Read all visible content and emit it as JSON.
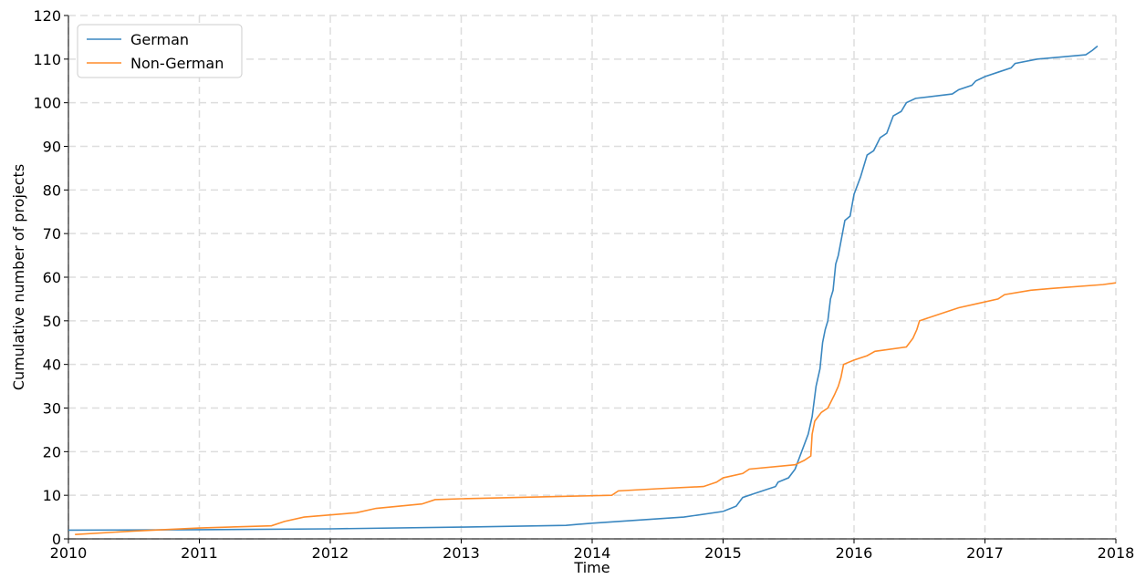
{
  "chart_data": {
    "type": "line",
    "xlabel": "Time",
    "ylabel": "Cumulative number of projects",
    "xlim": [
      2010,
      2018
    ],
    "xticks": [
      2010,
      2011,
      2012,
      2013,
      2014,
      2015,
      2016,
      2017,
      2018
    ],
    "ylim": [
      0,
      120
    ],
    "yticks": [
      0,
      10,
      20,
      30,
      40,
      50,
      60,
      70,
      80,
      90,
      100,
      110,
      120
    ],
    "grid": true,
    "legend": "upper left",
    "series": [
      {
        "name": "German",
        "color": "#3a87c0",
        "x": [
          2010.0,
          2011.0,
          2012.0,
          2013.0,
          2013.8,
          2014.0,
          2014.7,
          2015.0,
          2015.1,
          2015.15,
          2015.25,
          2015.4,
          2015.42,
          2015.5,
          2015.55,
          2015.6,
          2015.65,
          2015.68,
          2015.71,
          2015.74,
          2015.76,
          2015.78,
          2015.8,
          2015.82,
          2015.84,
          2015.86,
          2015.88,
          2015.93,
          2015.97,
          2016.0,
          2016.05,
          2016.1,
          2016.15,
          2016.2,
          2016.25,
          2016.3,
          2016.36,
          2016.4,
          2016.47,
          2016.75,
          2016.8,
          2016.9,
          2016.93,
          2017.0,
          2017.1,
          2017.2,
          2017.23,
          2017.4,
          2017.77,
          2017.82,
          2017.86
        ],
        "values": [
          2,
          2.1,
          2.3,
          2.7,
          3.1,
          3.6,
          5,
          6.3,
          7.5,
          9.5,
          10.5,
          12,
          13,
          14,
          16,
          20,
          24,
          28,
          35,
          39,
          45,
          48,
          50,
          55,
          57,
          63,
          65,
          73,
          74,
          79,
          83,
          88,
          89,
          92,
          93,
          97,
          98,
          100,
          101,
          102,
          103,
          104,
          105,
          106,
          107,
          108,
          109,
          110,
          111,
          112,
          113
        ]
      },
      {
        "name": "Non-German",
        "color": "#ff8c2a",
        "x": [
          2010.05,
          2010.5,
          2011.0,
          2011.55,
          2011.65,
          2011.8,
          2012.2,
          2012.35,
          2012.7,
          2012.8,
          2013.0,
          2014.15,
          2014.2,
          2014.5,
          2014.85,
          2014.95,
          2015.0,
          2015.15,
          2015.2,
          2015.55,
          2015.62,
          2015.67,
          2015.68,
          2015.7,
          2015.75,
          2015.8,
          2015.85,
          2015.88,
          2015.9,
          2015.92,
          2016.0,
          2016.1,
          2016.16,
          2016.4,
          2016.45,
          2016.48,
          2016.5,
          2016.7,
          2016.8,
          2016.95,
          2017.1,
          2017.15,
          2017.35,
          2017.5,
          2017.9,
          2018.0
        ],
        "values": [
          1,
          1.8,
          2.5,
          3,
          4,
          5,
          6,
          7,
          8,
          9,
          9.2,
          10,
          11,
          11.5,
          12,
          13,
          14,
          15,
          16,
          17,
          18,
          19,
          24,
          27,
          29,
          30,
          33,
          35,
          37,
          40,
          41,
          42,
          43,
          44,
          46,
          48,
          50,
          52,
          53,
          54,
          55,
          56,
          57,
          57.4,
          58.3,
          58.7
        ]
      }
    ]
  }
}
